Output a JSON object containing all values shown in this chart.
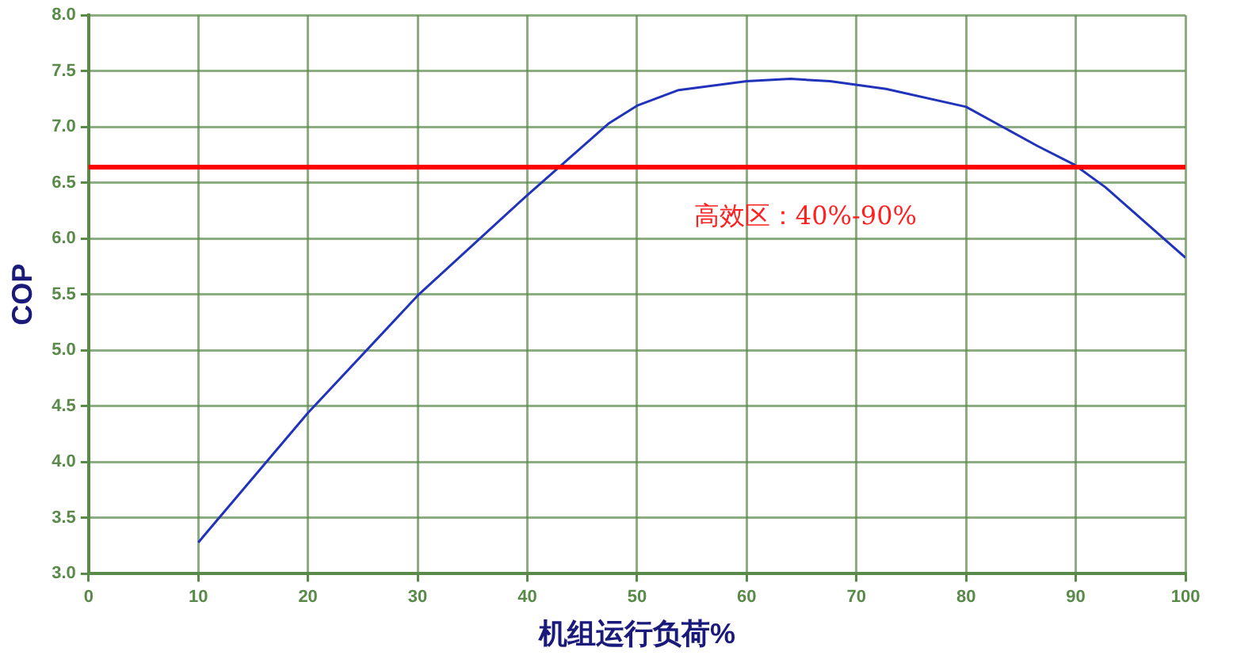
{
  "chart_data": {
    "type": "line",
    "xlabel": "机组运行负荷%",
    "ylabel": "COP",
    "x": [
      10,
      20,
      30,
      40,
      47.4,
      50,
      53.8,
      60,
      64,
      67.6,
      72.7,
      80,
      86.5,
      89.9,
      92.7,
      100
    ],
    "series": [
      {
        "color": "#2233bb",
        "values": [
          3.28,
          4.44,
          5.49,
          6.39,
          7.03,
          7.19,
          7.33,
          7.41,
          7.43,
          7.41,
          7.34,
          7.18,
          6.83,
          6.66,
          6.46,
          5.83
        ]
      }
    ],
    "xlim": [
      0,
      100
    ],
    "xticks": [
      0,
      10,
      20,
      30,
      40,
      50,
      60,
      70,
      80,
      90,
      100
    ],
    "ylim": [
      3,
      8
    ],
    "yticks": [
      {
        "value": 3,
        "label": "3.0"
      },
      {
        "value": 3.5,
        "label": "3.5"
      },
      {
        "value": 4,
        "label": "4.0"
      },
      {
        "value": 4.5,
        "label": "4.5"
      },
      {
        "value": 5,
        "label": "5.0"
      },
      {
        "value": 5.5,
        "label": "5.5"
      },
      {
        "value": 6,
        "label": "6.0"
      },
      {
        "value": 6.5,
        "label": "6.5"
      },
      {
        "value": 7,
        "label": "7.0"
      },
      {
        "value": 7.5,
        "label": "7.5"
      },
      {
        "value": 8,
        "label": "8.0"
      }
    ],
    "grid": true,
    "legend": false,
    "marker": "none",
    "line_style": "solid",
    "ref_lines": [
      {
        "axis": "y",
        "value": 6.64,
        "color": "#ff0000"
      }
    ],
    "annotations": [
      "高效区：40%-90%"
    ]
  }
}
